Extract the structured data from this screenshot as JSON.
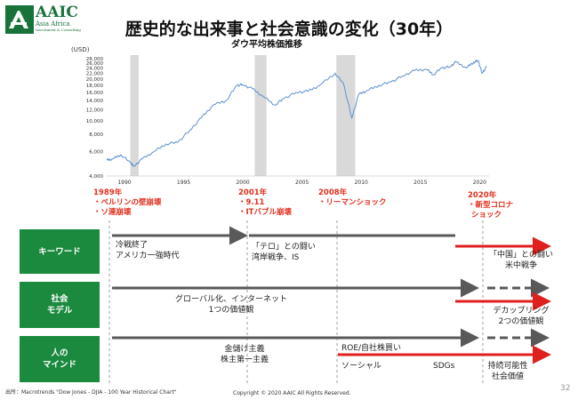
{
  "logo": {
    "name": "AAIC",
    "sub1": "Asia Africa",
    "sub2": "Investment & Consulting"
  },
  "title": "歴史的な出来事と社会意識の変化（30年）",
  "chart_data": {
    "type": "line",
    "title": "ダウ平均株価推移",
    "ylabel": "(USD)",
    "yscale": "log",
    "ylim": [
      4000,
      28000
    ],
    "yticks": [
      "4,000",
      "6,000",
      "8,000",
      "10,000",
      "12,000",
      "14,000",
      "16,000",
      "18,000",
      "20,000",
      "22,000",
      "24,000",
      "26,000",
      "28,000"
    ],
    "xticks": [
      "1990",
      "1995",
      "2000",
      "2005",
      "2010",
      "2015",
      "2020"
    ],
    "xlim": [
      1988.5,
      2020.8
    ],
    "shaded_periods": [
      [
        1990.5,
        1991.2
      ],
      [
        2001.0,
        2002.0
      ],
      [
        2007.9,
        2009.5
      ]
    ],
    "series": [
      {
        "color": "#5b8fd0",
        "x": [
          1988.5,
          1989.0,
          1989.7,
          1990.5,
          1990.8,
          1991.5,
          1992.5,
          1993.5,
          1994.5,
          1995.5,
          1996.5,
          1997.5,
          1998.6,
          1999.5,
          2000.0,
          2000.8,
          2001.7,
          2002.7,
          2003.5,
          2004.5,
          2005.5,
          2006.5,
          2007.8,
          2008.5,
          2009.2,
          2009.8,
          2010.5,
          2011.5,
          2012.5,
          2013.5,
          2014.5,
          2015.5,
          2016.1,
          2016.8,
          2017.5,
          2018.0,
          2018.9,
          2019.5,
          2019.9,
          2020.2,
          2020.6
        ],
        "y": [
          5200,
          5300,
          5700,
          5000,
          4700,
          5300,
          6000,
          6800,
          7000,
          8500,
          10500,
          13000,
          14000,
          18000,
          18200,
          17000,
          15000,
          13000,
          14500,
          16000,
          16300,
          18000,
          22000,
          18500,
          10500,
          15500,
          16500,
          18000,
          19000,
          21000,
          23000,
          23500,
          21500,
          24000,
          24500,
          26500,
          24000,
          26500,
          27000,
          22000,
          24500
        ]
      }
    ]
  },
  "events": [
    {
      "year": "1989年",
      "items": [
        "・ベルリンの壁崩壊",
        "・ソ連崩壊"
      ]
    },
    {
      "year": "2001年",
      "items": [
        "・9.11",
        "・ITバブル崩壊"
      ]
    },
    {
      "year": "2008年",
      "items": [
        "・リーマンショック"
      ]
    },
    {
      "year": "2020年",
      "items": [
        "・新型コロナ",
        "ショック"
      ]
    }
  ],
  "rows": {
    "keyword": {
      "label": "キーワード",
      "t1": "冷戦終了",
      "t2": "アメリカ一強時代",
      "t3": "「テロ」との闘い",
      "t4": "湾岸戦争、IS",
      "t5": "「中国」との闘い",
      "t6": "米中戦争"
    },
    "social": {
      "label1": "社会",
      "label2": "モデル",
      "t1": "グローバル化、インターネット",
      "t2": "1つの価値観",
      "t3": "デカップリング",
      "t4": "2つの価値観"
    },
    "mind": {
      "label1": "人の",
      "label2": "マインド",
      "t1": "金儲け主義",
      "t2": "株主第一主義",
      "t3": "ROE/自社株買い",
      "t4": "ソーシャル",
      "t5": "SDGs",
      "t6": "持続可能性",
      "t7": "社会価値"
    }
  },
  "footer": {
    "source": "出所：Macrotrends \"Dow Jones - DJIA - 100 Year Historical Chart\"",
    "copyright": "Copyright © 2020 AAIC All Rights Reserved.",
    "page": "32"
  },
  "colors": {
    "green": "#1c8a3e",
    "red": "#e0201e",
    "gray_arrow": "#595959",
    "line": "#5b8fd0",
    "shade": "#d9d9d9"
  }
}
